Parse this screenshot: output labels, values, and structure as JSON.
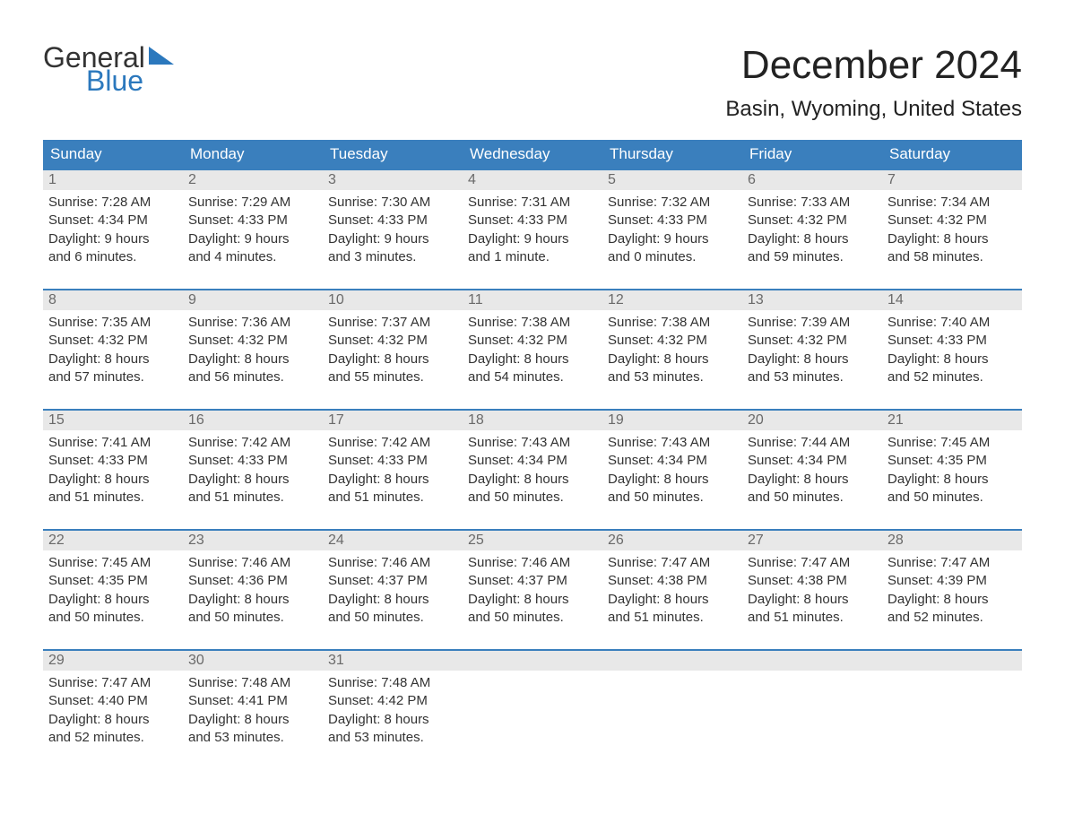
{
  "logo": {
    "line1": "General",
    "line2": "Blue",
    "flag_color": "#2b78bd",
    "text_color_dark": "#333333",
    "text_color_blue": "#2b78bd"
  },
  "title": "December 2024",
  "location": "Basin, Wyoming, United States",
  "colors": {
    "header_bg": "#3a7fbd",
    "header_text": "#ffffff",
    "week_border": "#3a7fbd",
    "daynum_bg": "#e8e8e8",
    "daynum_text": "#6a6a6a",
    "body_text": "#333333",
    "page_bg": "#ffffff"
  },
  "typography": {
    "title_fontsize": 44,
    "location_fontsize": 24,
    "header_fontsize": 17,
    "daynum_fontsize": 16,
    "cell_fontsize": 15,
    "logo_fontsize": 32
  },
  "day_headers": [
    "Sunday",
    "Monday",
    "Tuesday",
    "Wednesday",
    "Thursday",
    "Friday",
    "Saturday"
  ],
  "weeks": [
    [
      {
        "n": "1",
        "sunrise": "Sunrise: 7:28 AM",
        "sunset": "Sunset: 4:34 PM",
        "dl1": "Daylight: 9 hours",
        "dl2": "and 6 minutes."
      },
      {
        "n": "2",
        "sunrise": "Sunrise: 7:29 AM",
        "sunset": "Sunset: 4:33 PM",
        "dl1": "Daylight: 9 hours",
        "dl2": "and 4 minutes."
      },
      {
        "n": "3",
        "sunrise": "Sunrise: 7:30 AM",
        "sunset": "Sunset: 4:33 PM",
        "dl1": "Daylight: 9 hours",
        "dl2": "and 3 minutes."
      },
      {
        "n": "4",
        "sunrise": "Sunrise: 7:31 AM",
        "sunset": "Sunset: 4:33 PM",
        "dl1": "Daylight: 9 hours",
        "dl2": "and 1 minute."
      },
      {
        "n": "5",
        "sunrise": "Sunrise: 7:32 AM",
        "sunset": "Sunset: 4:33 PM",
        "dl1": "Daylight: 9 hours",
        "dl2": "and 0 minutes."
      },
      {
        "n": "6",
        "sunrise": "Sunrise: 7:33 AM",
        "sunset": "Sunset: 4:32 PM",
        "dl1": "Daylight: 8 hours",
        "dl2": "and 59 minutes."
      },
      {
        "n": "7",
        "sunrise": "Sunrise: 7:34 AM",
        "sunset": "Sunset: 4:32 PM",
        "dl1": "Daylight: 8 hours",
        "dl2": "and 58 minutes."
      }
    ],
    [
      {
        "n": "8",
        "sunrise": "Sunrise: 7:35 AM",
        "sunset": "Sunset: 4:32 PM",
        "dl1": "Daylight: 8 hours",
        "dl2": "and 57 minutes."
      },
      {
        "n": "9",
        "sunrise": "Sunrise: 7:36 AM",
        "sunset": "Sunset: 4:32 PM",
        "dl1": "Daylight: 8 hours",
        "dl2": "and 56 minutes."
      },
      {
        "n": "10",
        "sunrise": "Sunrise: 7:37 AM",
        "sunset": "Sunset: 4:32 PM",
        "dl1": "Daylight: 8 hours",
        "dl2": "and 55 minutes."
      },
      {
        "n": "11",
        "sunrise": "Sunrise: 7:38 AM",
        "sunset": "Sunset: 4:32 PM",
        "dl1": "Daylight: 8 hours",
        "dl2": "and 54 minutes."
      },
      {
        "n": "12",
        "sunrise": "Sunrise: 7:38 AM",
        "sunset": "Sunset: 4:32 PM",
        "dl1": "Daylight: 8 hours",
        "dl2": "and 53 minutes."
      },
      {
        "n": "13",
        "sunrise": "Sunrise: 7:39 AM",
        "sunset": "Sunset: 4:32 PM",
        "dl1": "Daylight: 8 hours",
        "dl2": "and 53 minutes."
      },
      {
        "n": "14",
        "sunrise": "Sunrise: 7:40 AM",
        "sunset": "Sunset: 4:33 PM",
        "dl1": "Daylight: 8 hours",
        "dl2": "and 52 minutes."
      }
    ],
    [
      {
        "n": "15",
        "sunrise": "Sunrise: 7:41 AM",
        "sunset": "Sunset: 4:33 PM",
        "dl1": "Daylight: 8 hours",
        "dl2": "and 51 minutes."
      },
      {
        "n": "16",
        "sunrise": "Sunrise: 7:42 AM",
        "sunset": "Sunset: 4:33 PM",
        "dl1": "Daylight: 8 hours",
        "dl2": "and 51 minutes."
      },
      {
        "n": "17",
        "sunrise": "Sunrise: 7:42 AM",
        "sunset": "Sunset: 4:33 PM",
        "dl1": "Daylight: 8 hours",
        "dl2": "and 51 minutes."
      },
      {
        "n": "18",
        "sunrise": "Sunrise: 7:43 AM",
        "sunset": "Sunset: 4:34 PM",
        "dl1": "Daylight: 8 hours",
        "dl2": "and 50 minutes."
      },
      {
        "n": "19",
        "sunrise": "Sunrise: 7:43 AM",
        "sunset": "Sunset: 4:34 PM",
        "dl1": "Daylight: 8 hours",
        "dl2": "and 50 minutes."
      },
      {
        "n": "20",
        "sunrise": "Sunrise: 7:44 AM",
        "sunset": "Sunset: 4:34 PM",
        "dl1": "Daylight: 8 hours",
        "dl2": "and 50 minutes."
      },
      {
        "n": "21",
        "sunrise": "Sunrise: 7:45 AM",
        "sunset": "Sunset: 4:35 PM",
        "dl1": "Daylight: 8 hours",
        "dl2": "and 50 minutes."
      }
    ],
    [
      {
        "n": "22",
        "sunrise": "Sunrise: 7:45 AM",
        "sunset": "Sunset: 4:35 PM",
        "dl1": "Daylight: 8 hours",
        "dl2": "and 50 minutes."
      },
      {
        "n": "23",
        "sunrise": "Sunrise: 7:46 AM",
        "sunset": "Sunset: 4:36 PM",
        "dl1": "Daylight: 8 hours",
        "dl2": "and 50 minutes."
      },
      {
        "n": "24",
        "sunrise": "Sunrise: 7:46 AM",
        "sunset": "Sunset: 4:37 PM",
        "dl1": "Daylight: 8 hours",
        "dl2": "and 50 minutes."
      },
      {
        "n": "25",
        "sunrise": "Sunrise: 7:46 AM",
        "sunset": "Sunset: 4:37 PM",
        "dl1": "Daylight: 8 hours",
        "dl2": "and 50 minutes."
      },
      {
        "n": "26",
        "sunrise": "Sunrise: 7:47 AM",
        "sunset": "Sunset: 4:38 PM",
        "dl1": "Daylight: 8 hours",
        "dl2": "and 51 minutes."
      },
      {
        "n": "27",
        "sunrise": "Sunrise: 7:47 AM",
        "sunset": "Sunset: 4:38 PM",
        "dl1": "Daylight: 8 hours",
        "dl2": "and 51 minutes."
      },
      {
        "n": "28",
        "sunrise": "Sunrise: 7:47 AM",
        "sunset": "Sunset: 4:39 PM",
        "dl1": "Daylight: 8 hours",
        "dl2": "and 52 minutes."
      }
    ],
    [
      {
        "n": "29",
        "sunrise": "Sunrise: 7:47 AM",
        "sunset": "Sunset: 4:40 PM",
        "dl1": "Daylight: 8 hours",
        "dl2": "and 52 minutes."
      },
      {
        "n": "30",
        "sunrise": "Sunrise: 7:48 AM",
        "sunset": "Sunset: 4:41 PM",
        "dl1": "Daylight: 8 hours",
        "dl2": "and 53 minutes."
      },
      {
        "n": "31",
        "sunrise": "Sunrise: 7:48 AM",
        "sunset": "Sunset: 4:42 PM",
        "dl1": "Daylight: 8 hours",
        "dl2": "and 53 minutes."
      },
      null,
      null,
      null,
      null
    ]
  ]
}
